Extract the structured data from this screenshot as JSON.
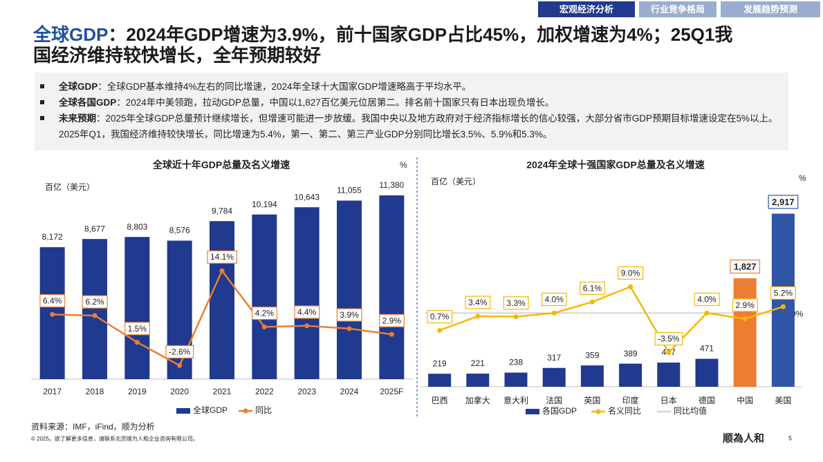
{
  "tabs": [
    "宏观经济分析",
    "行业竞争格局",
    "发展趋势预测"
  ],
  "header": {
    "title_lead": "全球GDP",
    "title_line1": "：2024年GDP增速为3.9%，前十国家GDP占比45%，加权增速为4%；25Q1我",
    "title_line2": "国经济维持较快增长，全年预期较好"
  },
  "bullets": [
    {
      "label": "全球GDP",
      "text": "：全球GDP基本维持4%左右的同比增速，2024年全球十大国家GDP增速略高于平均水平。"
    },
    {
      "label": "全球各国GDP",
      "text": "：2024年中美领跑，拉动GDP总量，中国以1,827百亿美元位居第二。排名前十国家只有日本出现负增长。"
    },
    {
      "label": "未来预期",
      "text": "：2025年全球GDP总量预计继续增长，但增速可能进一步放缓。我国中央以及地方政府对于经济指标增长的信心较强，大部分省市GDP预期目标增速设定在5%以上。2025年Q1，我国经济维持较快增长，同比增速为5.4%，第一、第二、第三产业GDP分别同比增长3.5%、5.9%和5.3%。"
    }
  ],
  "chart_data": [
    {
      "type": "bar_line",
      "title": "全球近十年GDP总量及名义增速",
      "y_label": "百亿（美元）",
      "y2_label": "%",
      "categories": [
        "2017",
        "2018",
        "2019",
        "2020",
        "2021",
        "2022",
        "2023",
        "2024",
        "2025F"
      ],
      "series": [
        {
          "name": "全球GDP",
          "type": "bar",
          "color": "#1f3a8f",
          "values": [
            8172,
            8677,
            8803,
            8576,
            9784,
            10194,
            10643,
            11055,
            11380
          ],
          "value_labels": [
            "8,172",
            "8,677",
            "8,803",
            "8,576",
            "9,784",
            "10,194",
            "10,643",
            "11,055",
            "11,380"
          ]
        },
        {
          "name": "同比",
          "type": "line",
          "axis": "y2",
          "color": "#ed7d31",
          "values": [
            6.4,
            6.2,
            1.5,
            -2.6,
            14.1,
            4.2,
            4.4,
            3.9,
            2.9
          ],
          "value_labels": [
            "6.4%",
            "6.2%",
            "1.5%",
            "-2.6%",
            "14.1%",
            "4.2%",
            "4.4%",
            "3.9%",
            "2.9%"
          ]
        }
      ],
      "ylim": [
        0,
        13000
      ],
      "y2lim": [
        -5,
        32
      ]
    },
    {
      "type": "bar_line",
      "title": "2024年全球十强国家GDP总量及名义增速",
      "y_label": "百亿（美元）",
      "y2_label": "%",
      "categories": [
        "巴西",
        "加拿大",
        "意大利",
        "法国",
        "英国",
        "印度",
        "日本",
        "德国",
        "中国",
        "美国"
      ],
      "series": [
        {
          "name": "各国GDP",
          "type": "bar",
          "color": "#1f3a8f",
          "colors": [
            "#1f3a8f",
            "#1f3a8f",
            "#1f3a8f",
            "#1f3a8f",
            "#1f3a8f",
            "#1f3a8f",
            "#1f3a8f",
            "#1f3a8f",
            "#ed7d31",
            "#2f55a4"
          ],
          "values": [
            219,
            221,
            238,
            317,
            359,
            389,
            407,
            471,
            1827,
            2917
          ],
          "value_labels": [
            "219",
            "221",
            "238",
            "317",
            "359",
            "389",
            "407",
            "471",
            "1,827",
            "2,917"
          ]
        },
        {
          "name": "名义同比",
          "type": "line",
          "axis": "y2",
          "color": "#f5b800",
          "values": [
            0.7,
            3.4,
            3.3,
            4.0,
            6.1,
            9.0,
            -3.5,
            4.0,
            2.9,
            5.2
          ],
          "value_labels": [
            "0.7%",
            "3.4%",
            "3.3%",
            "4.0%",
            "6.1%",
            "9.0%",
            "-3.5%",
            "4.0%",
            "2.9%",
            "5.2%"
          ]
        }
      ],
      "reference": {
        "name": "同比均值",
        "axis": "y2",
        "value": 4.0,
        "label": "4.0%",
        "color": "#bfbfbf"
      },
      "ylim": [
        0,
        3550
      ],
      "y2lim": [
        -10,
        30
      ]
    }
  ],
  "footer": {
    "source": "资料来源：IMF，iFind，顺为分析",
    "copyright": "© 2025。欲了解更多信息，请联系北京顺为人和企业咨询有限公司。",
    "logo": "顺為人和",
    "page": "5"
  }
}
